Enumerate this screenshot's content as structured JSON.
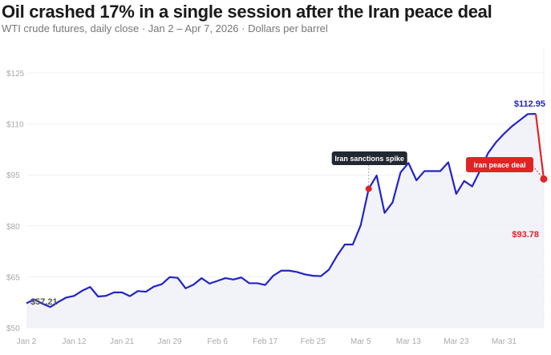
{
  "header": {
    "title": "Oil crashed 17% in a single session after the Iran peace deal",
    "subtitle": "WTI crude futures, daily close · Jan 2 – Apr 7, 2026 · Dollars per barrel"
  },
  "chart_data": {
    "type": "line",
    "title": "Oil crashed 17% in a single session after the Iran peace deal",
    "ylabel": "Dollars per barrel",
    "ylim": [
      50,
      125
    ],
    "yticks": [
      125,
      110,
      95,
      80,
      65,
      50
    ],
    "ytick_labels": [
      "$125",
      "$110",
      "$95",
      "$80",
      "$65",
      "$50"
    ],
    "xtick_labels": [
      {
        "index": 0,
        "label": "Jan 2"
      },
      {
        "index": 6,
        "label": "Jan 12"
      },
      {
        "index": 12,
        "label": "Jan 21"
      },
      {
        "index": 18,
        "label": "Jan 29"
      },
      {
        "index": 24,
        "label": "Feb 6"
      },
      {
        "index": 30,
        "label": "Feb 17"
      },
      {
        "index": 36,
        "label": "Feb 25"
      },
      {
        "index": 42,
        "label": "Mar 5"
      },
      {
        "index": 48,
        "label": "Mar 13"
      },
      {
        "index": 54,
        "label": "Mar 23"
      },
      {
        "index": 60,
        "label": "Mar 31"
      }
    ],
    "grid": true,
    "series": [
      {
        "name": "WTI crude close",
        "color": "#2323c8",
        "values": [
          57.21,
          58.3,
          57.1,
          56.1,
          57.6,
          58.9,
          59.4,
          60.9,
          62.0,
          59.2,
          59.4,
          60.4,
          60.4,
          59.3,
          60.8,
          60.6,
          62.1,
          62.8,
          64.9,
          64.7,
          61.6,
          62.7,
          64.6,
          63.0,
          63.8,
          64.6,
          64.2,
          64.8,
          63.1,
          63.1,
          62.6,
          65.3,
          66.8,
          66.8,
          66.4,
          65.7,
          65.3,
          65.2,
          67.1,
          71.1,
          74.5,
          74.5,
          80.2,
          90.9,
          94.8,
          83.8,
          86.9,
          95.7,
          98.5,
          93.4,
          96.1,
          96.1,
          96.1,
          98.7,
          89.4,
          93.2,
          91.6,
          96.3,
          101.4,
          104.6,
          107.1,
          109.3,
          111.1,
          112.9,
          112.95,
          93.78
        ]
      }
    ],
    "annotations": [
      {
        "index": 43,
        "text": "Iran sanctions spike",
        "color": "#222831"
      },
      {
        "index": 65,
        "text": "Iran peace deal",
        "color": "#e02424"
      }
    ],
    "value_labels": [
      {
        "index": 0,
        "text": "$57.21",
        "color": "#555555"
      },
      {
        "index": 64,
        "text": "$112.95",
        "color": "#2323c8"
      },
      {
        "index": 65,
        "text": "$93.78",
        "color": "#e02424"
      }
    ]
  }
}
